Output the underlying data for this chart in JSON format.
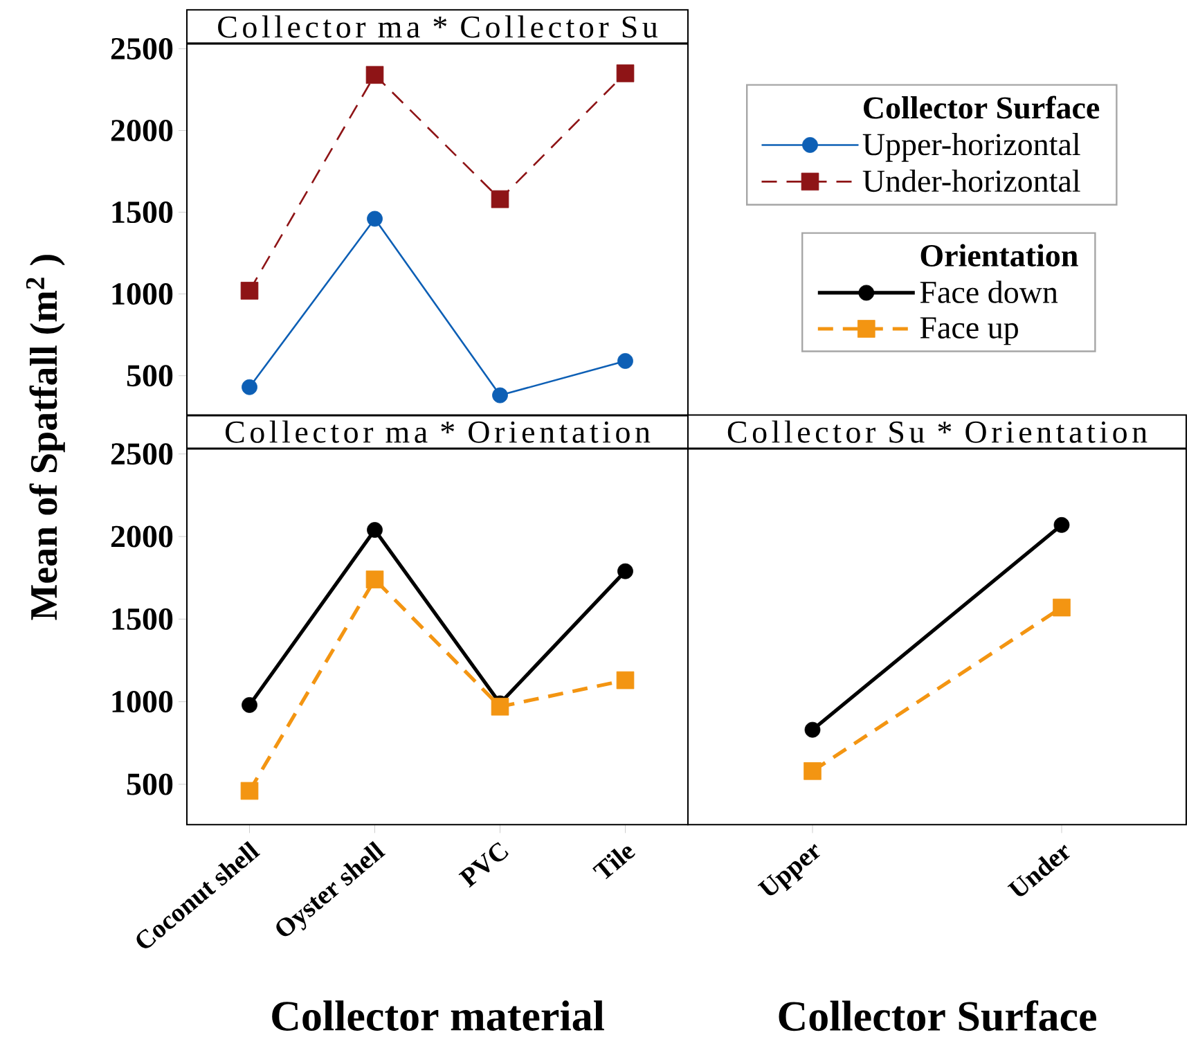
{
  "chart_data": [
    {
      "type": "line",
      "title": "Collector ma * Collector Su",
      "legend_title": "Collector Surface",
      "legend": "right",
      "tick_labels": "y",
      "categories": [
        null,
        null,
        null,
        null
      ],
      "ylim": [
        255,
        2530
      ],
      "yticks": [
        500,
        1000,
        1500,
        2000,
        2500
      ],
      "series": [
        {
          "name": "Upper-horizontal",
          "color": "#0d5fb5",
          "marker": "circle",
          "line_style": "solid",
          "values": [
            430,
            1460,
            380,
            590
          ]
        },
        {
          "name": "Under-horizontal",
          "color": "#8e1416",
          "marker": "square",
          "line_style": "dashed",
          "values": [
            1020,
            2340,
            1580,
            2350
          ]
        }
      ]
    },
    {
      "type": "line",
      "title": "Collector ma * Orientation",
      "xlabel": "Collector material",
      "ylabel": "Mean of Spatfall (m$^{2}$ )",
      "legend_title": "Orientation",
      "legend": "top right",
      "categories": [
        "Coconut shell",
        "Oyster shell",
        "PVC",
        "Tile"
      ],
      "ylim": [
        255,
        2530
      ],
      "yticks": [
        500,
        1000,
        1500,
        2000,
        2500
      ],
      "series": [
        {
          "name": "Face down",
          "color": "#000000",
          "marker": "circle",
          "line_style": "solid",
          "values": [
            980,
            2040,
            990,
            1790
          ]
        },
        {
          "name": "Face up",
          "color": "#f39512",
          "marker": "square",
          "line_style": "dashed",
          "values": [
            460,
            1740,
            970,
            1130
          ]
        }
      ]
    },
    {
      "type": "line",
      "title": "Collector Su * Orientation",
      "xlabel": "Collector Surface",
      "tick_labels": "x",
      "categories": [
        "Upper",
        "Under"
      ],
      "ylim": [
        255,
        2530
      ],
      "series": [
        {
          "color": "#000000",
          "marker": "circle",
          "line_style": "solid",
          "values": [
            830,
            2070
          ]
        },
        {
          "color": "#f39512",
          "marker": "square",
          "line_style": "dashed",
          "values": [
            580,
            1570
          ]
        }
      ]
    }
  ]
}
